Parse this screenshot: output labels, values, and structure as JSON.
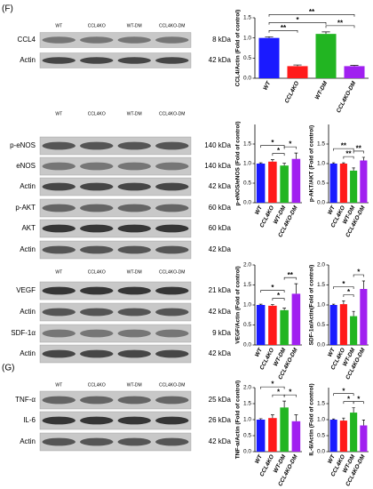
{
  "panel_labels": [
    "(F)",
    "(G)"
  ],
  "blots": [
    {
      "lanes": [
        "WT",
        "CCL4KO",
        "WT-DM",
        "CCL4KO-DM"
      ],
      "rows": [
        {
          "label": "CCL4",
          "size": "8 kDa"
        },
        {
          "label": "Actin",
          "size": "42 kDa"
        }
      ]
    },
    {
      "lanes": [
        "WT",
        "CCL4KO",
        "WT-DM",
        "CCL4KO-DM"
      ],
      "rows": [
        {
          "label": "p-eNOS",
          "size": "140 kDa"
        },
        {
          "label": "eNOS",
          "size": "140 kDa"
        },
        {
          "label": "Actin",
          "size": "42 kDa"
        },
        {
          "label": "p-AKT",
          "size": "60 kDa"
        },
        {
          "label": "AKT",
          "size": "60 kDa"
        },
        {
          "label": "Actin",
          "size": "42 kDa"
        }
      ]
    },
    {
      "lanes": [
        "WT",
        "CCL4KO",
        "WT-DM",
        "CCL4KO-DM"
      ],
      "rows": [
        {
          "label": "VEGF",
          "size": "21 kDa"
        },
        {
          "label": "Actin",
          "size": "42 kDa"
        },
        {
          "label": "SDF-1α",
          "size": "9 kDa"
        },
        {
          "label": "Actin",
          "size": "42 kDa"
        }
      ]
    },
    {
      "lanes": [
        "WT",
        "CCL4KO",
        "WT-DM",
        "CCL4KO-DM"
      ],
      "rows": [
        {
          "label": "TNF-α",
          "size": "25 kDa"
        },
        {
          "label": "IL-6",
          "size": "26 kDa"
        },
        {
          "label": "Actin",
          "size": "42 kDa"
        }
      ]
    }
  ],
  "chart_data": [
    {
      "type": "bar",
      "ylabel": "CCL4/Actin (Fold of control)",
      "categories": [
        "WT",
        "CCL4KO",
        "WT-DM",
        "CCL4KO-DM"
      ],
      "values": [
        1.0,
        0.3,
        1.1,
        0.3
      ],
      "errors": [
        0.03,
        0.03,
        0.05,
        0.02
      ],
      "colors": [
        "#1a1aff",
        "#ff1a1a",
        "#22b522",
        "#a020f0"
      ],
      "ylim": [
        0,
        1.5
      ],
      "yticks": [
        {
          "value": 0,
          "label": "0.0"
        },
        0.5,
        {
          "value": 1,
          "label": "1.0"
        },
        1.5
      ],
      "brackets": [
        {
          "between": [
            0,
            1
          ],
          "label": "**"
        },
        {
          "between": [
            0,
            2
          ],
          "label": "*"
        },
        {
          "between": [
            2,
            3
          ],
          "label": "**"
        },
        {
          "between": [
            0,
            3
          ],
          "label": "**"
        }
      ]
    },
    {
      "type": "bar",
      "ylabel": "p-eNOS/eNOS (Fold of control)",
      "categories": [
        "WT",
        "CCL4KO",
        "WT-DM",
        "CCL4KO-DM"
      ],
      "values": [
        1.0,
        1.05,
        0.95,
        1.12
      ],
      "errors": [
        0.02,
        0.05,
        0.06,
        0.15
      ],
      "colors": [
        "#1a1aff",
        "#ff1a1a",
        "#22b522",
        "#a020f0"
      ],
      "ylim": [
        0,
        2.0
      ],
      "yticks": [
        {
          "value": 0,
          "label": "0.0"
        },
        0.5,
        {
          "value": 1,
          "label": "1.0"
        },
        1.5
      ],
      "brackets": [
        {
          "between": [
            1,
            2
          ],
          "label": "*"
        },
        {
          "between": [
            2,
            3
          ],
          "label": "*"
        },
        {
          "between": [
            0,
            2
          ],
          "label": "*"
        }
      ]
    },
    {
      "type": "bar",
      "ylabel": "p-AKT/AKT (Fold of control)",
      "categories": [
        "WT",
        "CCL4KO",
        "WT-DM",
        "CCL4KO-DM"
      ],
      "values": [
        1.0,
        1.0,
        0.82,
        1.08
      ],
      "errors": [
        0.02,
        0.02,
        0.07,
        0.08
      ],
      "colors": [
        "#1a1aff",
        "#ff1a1a",
        "#22b522",
        "#a020f0"
      ],
      "ylim": [
        0,
        2.0
      ],
      "yticks": [
        {
          "value": 0,
          "label": "0.0"
        },
        0.5,
        {
          "value": 1,
          "label": "1.0"
        },
        1.5
      ],
      "brackets": [
        {
          "between": [
            1,
            2
          ],
          "label": "**"
        },
        {
          "between": [
            2,
            3
          ],
          "label": "**"
        },
        {
          "between": [
            0,
            2
          ],
          "label": "**"
        }
      ]
    },
    {
      "type": "bar",
      "ylabel": "VEGF/Actin (Fold of control)",
      "categories": [
        "WT",
        "CCL4KO",
        "WT-DM",
        "CCL4KO-DM"
      ],
      "values": [
        1.0,
        0.98,
        0.87,
        1.28
      ],
      "errors": [
        0.02,
        0.03,
        0.05,
        0.25
      ],
      "colors": [
        "#1a1aff",
        "#ff1a1a",
        "#22b522",
        "#a020f0"
      ],
      "ylim": [
        0,
        2.0
      ],
      "yticks": [
        {
          "value": 0,
          "label": "0.0"
        },
        0.5,
        {
          "value": 1,
          "label": "1.0"
        },
        1.5,
        {
          "value": 2,
          "label": "2.0"
        }
      ],
      "brackets": [
        {
          "between": [
            1,
            2
          ],
          "label": "*"
        },
        {
          "between": [
            2,
            3
          ],
          "label": "**"
        },
        {
          "between": [
            0,
            2
          ],
          "label": "*"
        }
      ]
    },
    {
      "type": "bar",
      "ylabel": "SDF-1α/Actin(Fold of control)",
      "categories": [
        "WT",
        "CCL4KO",
        "WT-DM",
        "CCL4KO-DM"
      ],
      "values": [
        1.0,
        1.02,
        0.72,
        1.4
      ],
      "errors": [
        0.02,
        0.08,
        0.12,
        0.2
      ],
      "colors": [
        "#1a1aff",
        "#ff1a1a",
        "#22b522",
        "#a020f0"
      ],
      "ylim": [
        0,
        2.0
      ],
      "yticks": [
        {
          "value": 0,
          "label": "0.0"
        },
        0.5,
        {
          "value": 1,
          "label": "1.0"
        },
        1.5,
        {
          "value": 2,
          "label": "2.0"
        }
      ],
      "brackets": [
        {
          "between": [
            1,
            2
          ],
          "label": "*"
        },
        {
          "between": [
            2,
            3
          ],
          "label": "*"
        },
        {
          "between": [
            0,
            2
          ],
          "label": "*"
        }
      ]
    },
    {
      "type": "bar",
      "ylabel": "TNF-α/Actin (Fold of control)",
      "categories": [
        "WT",
        "CCL4KO",
        "WT-DM",
        "CCL4KO-DM"
      ],
      "values": [
        1.0,
        1.05,
        1.38,
        0.95
      ],
      "errors": [
        0.03,
        0.1,
        0.2,
        0.2
      ],
      "colors": [
        "#1a1aff",
        "#ff1a1a",
        "#22b522",
        "#a020f0"
      ],
      "ylim": [
        0,
        2.0
      ],
      "yticks": [
        {
          "value": 0,
          "label": "0.0"
        },
        0.5,
        {
          "value": 1,
          "label": "1.0"
        },
        1.5,
        {
          "value": 2,
          "label": "2.0"
        }
      ],
      "brackets": [
        {
          "between": [
            1,
            2
          ],
          "label": "*"
        },
        {
          "between": [
            2,
            3
          ],
          "label": "*"
        },
        {
          "between": [
            0,
            2
          ],
          "label": "*"
        }
      ]
    },
    {
      "type": "bar",
      "ylabel": "IL-6/Actin (Fold of control)",
      "categories": [
        "WT",
        "CCL4KO",
        "WT-DM",
        "CCL4KO-DM"
      ],
      "values": [
        1.0,
        0.97,
        1.22,
        0.82
      ],
      "errors": [
        0.02,
        0.08,
        0.15,
        0.17
      ],
      "colors": [
        "#1a1aff",
        "#ff1a1a",
        "#22b522",
        "#a020f0"
      ],
      "ylim": [
        0,
        2.0
      ],
      "yticks": [
        {
          "value": 0,
          "label": "0.0"
        },
        0.5,
        {
          "value": 1,
          "label": "1.0"
        },
        1.5
      ],
      "brackets": [
        {
          "between": [
            1,
            2
          ],
          "label": "*"
        },
        {
          "between": [
            2,
            3
          ],
          "label": "*"
        },
        {
          "between": [
            0,
            2
          ],
          "label": "*"
        }
      ]
    }
  ]
}
